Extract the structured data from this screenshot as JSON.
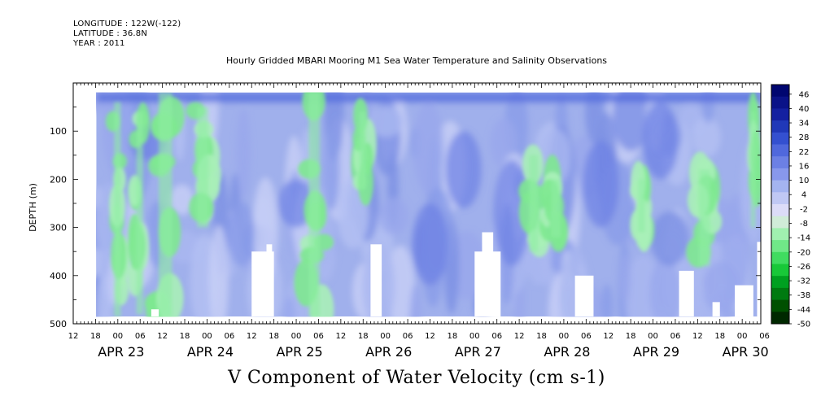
{
  "header": {
    "longitude": "LONGITUDE : 122W(-122)",
    "latitude": "LATITUDE : 36.8N",
    "year": "YEAR : 2011"
  },
  "title": "Hourly Gridded MBARI Mooring M1 Sea Water Temperature and Salinity Observations",
  "bottom_title": "V Component of Water Velocity (cm s-1)",
  "chart_data": {
    "type": "heatmap",
    "ylabel": "DEPTH (m)",
    "ylim": [
      500,
      0
    ],
    "y_inverted": true,
    "yticks": [
      100,
      200,
      300,
      400,
      500
    ],
    "x_hour_labels": [
      "12",
      "18",
      "00",
      "06",
      "12",
      "18",
      "00",
      "06",
      "12",
      "18",
      "00",
      "06",
      "12",
      "18",
      "00",
      "06",
      "12",
      "18",
      "00",
      "06",
      "12",
      "18",
      "00",
      "06",
      "12",
      "18",
      "00",
      "06",
      "12",
      "18",
      "00",
      "06"
    ],
    "x_date_labels": [
      "APR 23",
      "APR 24",
      "APR 25",
      "APR 26",
      "APR 27",
      "APR 28",
      "APR 29",
      "APR 30"
    ],
    "x_range_hours_from_first_tick": [
      0,
      185
    ],
    "data_depth_range": [
      20,
      485
    ],
    "colorbar": {
      "levels": [
        46,
        40,
        34,
        28,
        22,
        16,
        10,
        4,
        -2,
        -8,
        -14,
        -20,
        -26,
        -32,
        -38,
        -44,
        -50
      ],
      "min": -50,
      "max": 50,
      "colors": [
        "#002800",
        "#005000",
        "#007a10",
        "#00a020",
        "#18c838",
        "#40dc60",
        "#70e888",
        "#a0f0b0",
        "#d0ecd8",
        "#dcdcf8",
        "#c0c8f4",
        "#a4b4f0",
        "#8898ec",
        "#6c80e4",
        "#5068dc",
        "#3450d0",
        "#2038b8",
        "#1420a0",
        "#0a1288",
        "#000670"
      ]
    },
    "green_columns_hours": [
      {
        "hour": 12,
        "width": 3,
        "from": 40,
        "to": 485
      },
      {
        "hour": 18,
        "width": 3,
        "from": 60,
        "to": 480
      },
      {
        "hour": 25,
        "width": 6,
        "from": 20,
        "to": 485
      },
      {
        "hour": 35,
        "width": 5,
        "from": 50,
        "to": 300
      },
      {
        "hour": 65,
        "width": 5,
        "from": 20,
        "to": 485
      },
      {
        "hour": 78,
        "width": 3,
        "from": 60,
        "to": 220
      },
      {
        "hour": 124,
        "width": 4,
        "from": 150,
        "to": 350
      },
      {
        "hour": 130,
        "width": 4,
        "from": 200,
        "to": 320
      },
      {
        "hour": 153,
        "width": 3,
        "from": 200,
        "to": 310
      },
      {
        "hour": 170,
        "width": 5,
        "from": 180,
        "to": 380
      },
      {
        "hour": 183,
        "width": 2,
        "from": 60,
        "to": 300
      }
    ],
    "missing_blocks_hours": [
      {
        "from": 21,
        "to": 23,
        "depth_from": 470
      },
      {
        "from": 48,
        "to": 54,
        "depth_from": 350
      },
      {
        "from": 52,
        "to": 53.5,
        "depth_from": 335
      },
      {
        "from": 80,
        "to": 83,
        "depth_from": 335
      },
      {
        "from": 108,
        "to": 115,
        "depth_from": 350
      },
      {
        "from": 110,
        "to": 113,
        "depth_from": 310
      },
      {
        "from": 135,
        "to": 140,
        "depth_from": 400
      },
      {
        "from": 163,
        "to": 167,
        "depth_from": 390
      },
      {
        "from": 172,
        "to": 174,
        "depth_from": 455
      },
      {
        "from": 178,
        "to": 183,
        "depth_from": 420
      },
      {
        "from": 184,
        "to": 185,
        "depth_from": 330
      }
    ]
  }
}
